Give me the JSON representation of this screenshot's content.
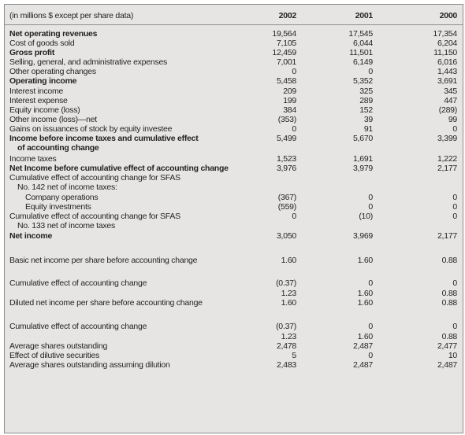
{
  "header": {
    "label": "(in millions $ except per share data)",
    "years": [
      "2002",
      "2001",
      "2000"
    ]
  },
  "rows": [
    {
      "label": "Net operating revenues",
      "bold": true,
      "indent": 0,
      "values": [
        "19,564",
        "17,545",
        "17,354"
      ]
    },
    {
      "label": "Cost of goods sold",
      "bold": false,
      "indent": 0,
      "values": [
        "7,105",
        "6,044",
        "6,204"
      ]
    },
    {
      "label": "Gross profit",
      "bold": true,
      "indent": 0,
      "values": [
        "12,459",
        "11,501",
        "11,150"
      ]
    },
    {
      "label": "Selling, general, and administrative expenses",
      "bold": false,
      "indent": 0,
      "values": [
        "7,001",
        "6,149",
        "6,016"
      ]
    },
    {
      "label": "Other operating changes",
      "bold": false,
      "indent": 0,
      "values": [
        "0",
        "0",
        "1,443"
      ]
    },
    {
      "label": "Operating income",
      "bold": true,
      "indent": 0,
      "values": [
        "5,458",
        "5,352",
        "3,691"
      ]
    },
    {
      "label": "Interest income",
      "bold": false,
      "indent": 0,
      "values": [
        "209",
        "325",
        "345"
      ]
    },
    {
      "label": "Interest expense",
      "bold": false,
      "indent": 0,
      "values": [
        "199",
        "289",
        "447"
      ]
    },
    {
      "label": "Equity income (loss)",
      "bold": false,
      "indent": 0,
      "values": [
        "384",
        "152",
        "(289)"
      ]
    },
    {
      "label": "Other income (loss)—net",
      "bold": false,
      "indent": 0,
      "values": [
        "(353)",
        "39",
        "99"
      ]
    },
    {
      "label": "Gains on issuances of stock by equity investee",
      "bold": false,
      "indent": 0,
      "values": [
        "0",
        "91",
        "0"
      ]
    },
    {
      "label": "Income before income taxes and cumulative effect",
      "bold": true,
      "indent": 0,
      "values": [
        "5,499",
        "5,670",
        "3,399"
      ]
    },
    {
      "label": "of accounting change",
      "bold": true,
      "indent": 1,
      "values": [
        "",
        "",
        ""
      ]
    },
    {
      "label": "Income taxes",
      "bold": false,
      "indent": 0,
      "values": [
        "1,523",
        "1,691",
        "1,222"
      ]
    },
    {
      "label": "Net Income before cumulative effect of accounting change",
      "bold": true,
      "indent": 0,
      "values": [
        "3,976",
        "3,979",
        "2,177"
      ]
    },
    {
      "label": "Cumulative effect of accounting change for SFAS",
      "bold": false,
      "indent": 0,
      "values": [
        "",
        "",
        ""
      ]
    },
    {
      "label": "No. 142 net of income taxes:",
      "bold": false,
      "indent": 1,
      "values": [
        "",
        "",
        ""
      ]
    },
    {
      "label": "Company operations",
      "bold": false,
      "indent": 2,
      "values": [
        "(367)",
        "0",
        "0"
      ]
    },
    {
      "label": "Equity investments",
      "bold": false,
      "indent": 2,
      "values": [
        "(559)",
        "0",
        "0"
      ]
    },
    {
      "label": "Cumulative effect of accounting change for SFAS",
      "bold": false,
      "indent": 0,
      "values": [
        "0",
        "(10)",
        "0"
      ]
    },
    {
      "label": "No. 133 net of income taxes",
      "bold": false,
      "indent": 1,
      "values": [
        "",
        "",
        ""
      ]
    },
    {
      "label": "Net income",
      "bold": true,
      "indent": 0,
      "values": [
        "3,050",
        "3,969",
        "2,177"
      ]
    },
    {
      "label": "Basic net income per share before accounting change",
      "bold": false,
      "indent": 0,
      "values": [
        "1.60",
        "1.60",
        "0.88"
      ]
    },
    {
      "label": "Cumulative effect of accounting change",
      "bold": false,
      "indent": 0,
      "values": [
        "(0.37)",
        "0",
        "0"
      ]
    },
    {
      "label": "",
      "bold": false,
      "indent": 0,
      "values": [
        "1.23",
        "1.60",
        "0.88"
      ]
    },
    {
      "label": "Diluted net income per share before accounting change",
      "bold": false,
      "indent": 0,
      "values": [
        "1.60",
        "1.60",
        "0.88"
      ]
    },
    {
      "label": "Cumulative effect of accounting change",
      "bold": false,
      "indent": 0,
      "values": [
        "(0.37)",
        "0",
        "0"
      ]
    },
    {
      "label": "",
      "bold": false,
      "indent": 0,
      "values": [
        "1.23",
        "1.60",
        "0.88"
      ]
    },
    {
      "label": "Average shares outstanding",
      "bold": false,
      "indent": 0,
      "values": [
        "2,478",
        "2,487",
        "2,477"
      ]
    },
    {
      "label": "Effect of dilutive securities",
      "bold": false,
      "indent": 0,
      "values": [
        "5",
        "0",
        "10"
      ]
    },
    {
      "label": "Average shares outstanding assuming dilution",
      "bold": false,
      "indent": 0,
      "values": [
        "2,483",
        "2,487",
        "2,487"
      ]
    }
  ]
}
